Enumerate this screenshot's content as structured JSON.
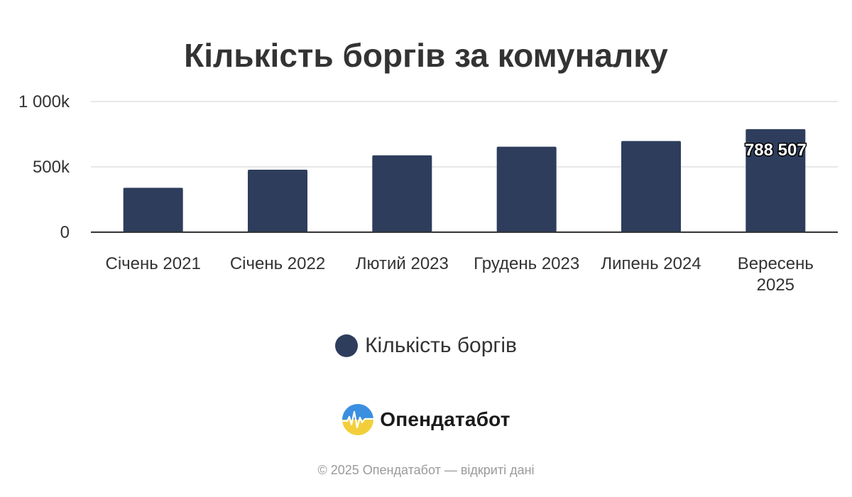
{
  "chart_data": {
    "type": "bar",
    "title": "Кількість боргів за комуналку",
    "xlabel": "",
    "ylabel": "",
    "categories": [
      [
        "Січень 2021"
      ],
      [
        "Січень 2022"
      ],
      [
        "Лютий 2023"
      ],
      [
        "Грудень 2023"
      ],
      [
        "Липень 2024"
      ],
      [
        "Вересень",
        "2025"
      ]
    ],
    "series": [
      {
        "name": "Кількість боргів",
        "values": [
          340000,
          478000,
          588000,
          654000,
          698000,
          788507
        ],
        "color": "#2e3d5c"
      }
    ],
    "data_labels": [
      null,
      null,
      null,
      null,
      null,
      "788 507"
    ],
    "y_ticks": [
      {
        "value": 0,
        "label": "0"
      },
      {
        "value": 500000,
        "label": "500k"
      },
      {
        "value": 1000000,
        "label": "1 000k"
      }
    ],
    "ylim": [
      0,
      1000000
    ],
    "grid": true,
    "legend_position": "bottom-center"
  },
  "brand": {
    "name": "Опендатабот",
    "icon": "opendatabot-logo-icon"
  },
  "footer": {
    "text": "© 2025 Опендатабот — відкриті дані"
  }
}
